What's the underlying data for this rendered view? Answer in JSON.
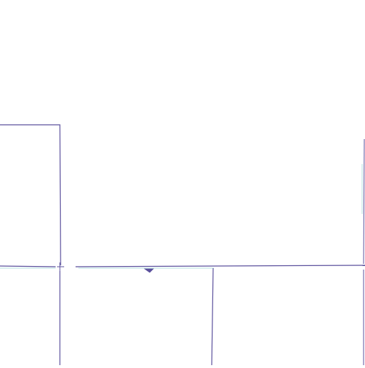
{
  "canvas": {
    "background": "#ffffff",
    "line_color": "#5a4f9c",
    "accent_color": "#9ed6d6"
  }
}
